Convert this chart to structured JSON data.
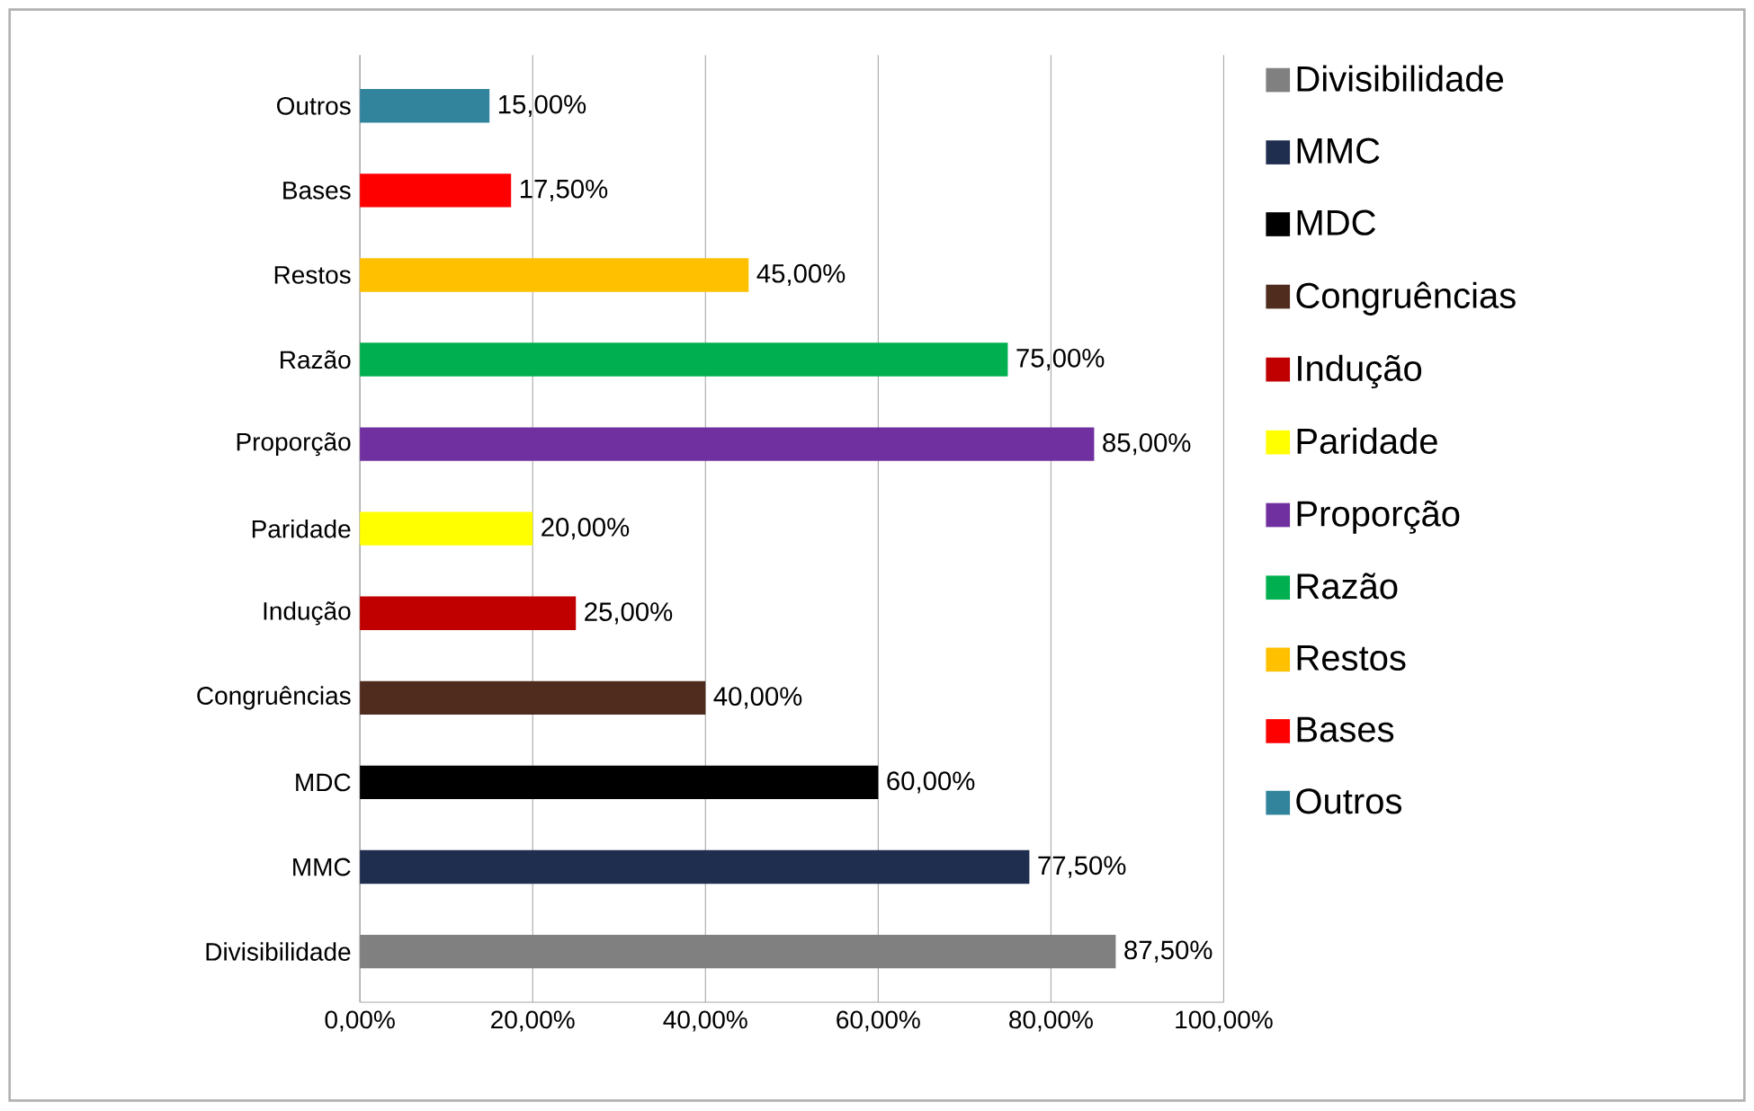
{
  "chart_data": {
    "type": "bar",
    "orientation": "horizontal",
    "categories": [
      "Outros",
      "Bases",
      "Restos",
      "Razão",
      "Proporção",
      "Paridade",
      "Indução",
      "Congruências",
      "MDC",
      "MMC",
      "Divisibilidade"
    ],
    "series": [
      {
        "name": "Outros",
        "color": "#31849b",
        "values": [
          15,
          null,
          null,
          null,
          null,
          null,
          null,
          null,
          null,
          null,
          null
        ],
        "value_labels": [
          "15,00%",
          null,
          null,
          null,
          null,
          null,
          null,
          null,
          null,
          null,
          null
        ]
      },
      {
        "name": "Bases",
        "color": "#ff0000",
        "values": [
          null,
          17.5,
          null,
          null,
          null,
          null,
          null,
          null,
          null,
          null,
          null
        ],
        "value_labels": [
          null,
          "17,50%",
          null,
          null,
          null,
          null,
          null,
          null,
          null,
          null,
          null
        ]
      },
      {
        "name": "Restos",
        "color": "#ffc000",
        "values": [
          null,
          null,
          45,
          null,
          null,
          null,
          null,
          null,
          null,
          null,
          null
        ],
        "value_labels": [
          null,
          null,
          "45,00%",
          null,
          null,
          null,
          null,
          null,
          null,
          null,
          null
        ]
      },
      {
        "name": "Razão",
        "color": "#00b050",
        "values": [
          null,
          null,
          null,
          75,
          null,
          null,
          null,
          null,
          null,
          null,
          null
        ],
        "value_labels": [
          null,
          null,
          null,
          "75,00%",
          null,
          null,
          null,
          null,
          null,
          null,
          null
        ]
      },
      {
        "name": "Proporção",
        "color": "#7030a0",
        "values": [
          null,
          null,
          null,
          null,
          85,
          null,
          null,
          null,
          null,
          null,
          null
        ],
        "value_labels": [
          null,
          null,
          null,
          null,
          "85,00%",
          null,
          null,
          null,
          null,
          null,
          null
        ]
      },
      {
        "name": "Paridade",
        "color": "#ffff00",
        "values": [
          null,
          null,
          null,
          null,
          null,
          20,
          null,
          null,
          null,
          null,
          null
        ],
        "value_labels": [
          null,
          null,
          null,
          null,
          null,
          "20,00%",
          null,
          null,
          null,
          null,
          null
        ]
      },
      {
        "name": "Indução",
        "color": "#c00000",
        "values": [
          null,
          null,
          null,
          null,
          null,
          null,
          25,
          null,
          null,
          null,
          null
        ],
        "value_labels": [
          null,
          null,
          null,
          null,
          null,
          null,
          "25,00%",
          null,
          null,
          null,
          null
        ]
      },
      {
        "name": "Congruências",
        "color": "#4f2c1e",
        "values": [
          null,
          null,
          null,
          null,
          null,
          null,
          null,
          40,
          null,
          null,
          null
        ],
        "value_labels": [
          null,
          null,
          null,
          null,
          null,
          null,
          null,
          "40,00%",
          null,
          null,
          null
        ]
      },
      {
        "name": "MDC",
        "color": "#000000",
        "values": [
          null,
          null,
          null,
          null,
          null,
          null,
          null,
          null,
          60,
          null,
          null
        ],
        "value_labels": [
          null,
          null,
          null,
          null,
          null,
          null,
          null,
          null,
          "60,00%",
          null,
          null
        ]
      },
      {
        "name": "MMC",
        "color": "#1f2d4f",
        "values": [
          null,
          null,
          null,
          null,
          null,
          null,
          null,
          null,
          null,
          77.5,
          null
        ],
        "value_labels": [
          null,
          null,
          null,
          null,
          null,
          null,
          null,
          null,
          null,
          "77,50%",
          null
        ]
      },
      {
        "name": "Divisibilidade",
        "color": "#808080",
        "values": [
          null,
          null,
          null,
          null,
          null,
          null,
          null,
          null,
          null,
          null,
          87.5
        ],
        "value_labels": [
          null,
          null,
          null,
          null,
          null,
          null,
          null,
          null,
          null,
          null,
          "87,50%"
        ]
      }
    ],
    "xlim": [
      0,
      100
    ],
    "xticks": [
      {
        "value": 0,
        "label": "0,00%"
      },
      {
        "value": 20,
        "label": "20,00%"
      },
      {
        "value": 40,
        "label": "40,00%"
      },
      {
        "value": 60,
        "label": "60,00%"
      },
      {
        "value": 80,
        "label": "80,00%"
      },
      {
        "value": 100,
        "label": "100,00%"
      }
    ],
    "grid": "x",
    "legend": "right"
  }
}
